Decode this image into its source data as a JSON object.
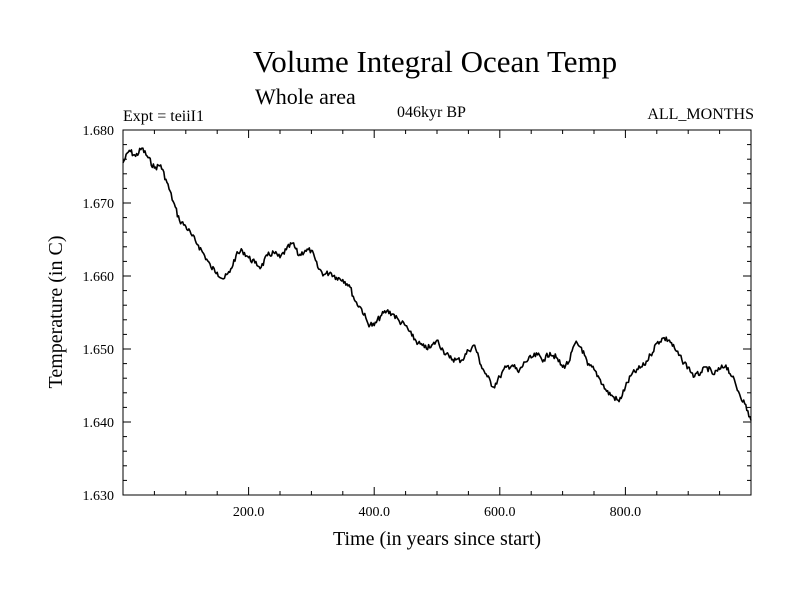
{
  "chart_data": {
    "type": "line",
    "title": "Volume Integral Ocean Temp",
    "subtitle": "Whole area",
    "annotations": {
      "experiment": "Expt = teiiI1",
      "period": "046kyr BP",
      "months": "ALL_MONTHS"
    },
    "xlabel": "Time (in years since start)",
    "ylabel": "Temperature (in C)",
    "xlim": [
      0,
      1000
    ],
    "ylim": [
      1.63,
      1.68
    ],
    "x_ticks": [
      200,
      400,
      600,
      800
    ],
    "x_tick_labels": [
      "200.0",
      "400.0",
      "600.0",
      "800.0"
    ],
    "y_ticks": [
      1.63,
      1.64,
      1.65,
      1.66,
      1.67,
      1.68
    ],
    "y_tick_labels": [
      "1.630",
      "1.640",
      "1.650",
      "1.660",
      "1.670",
      "1.680"
    ],
    "grid": false,
    "line_color": "#000000",
    "series": [
      {
        "x": [
          0,
          10,
          20,
          30,
          40,
          50,
          60,
          70,
          80,
          90,
          100,
          110,
          120,
          130,
          140,
          150,
          160,
          170,
          180,
          190,
          200,
          210,
          220,
          230,
          240,
          250,
          260,
          270,
          280,
          290,
          300,
          310,
          320,
          330,
          340,
          350,
          360,
          370,
          380,
          390,
          400,
          410,
          420,
          430,
          440,
          450,
          460,
          470,
          480,
          490,
          500,
          510,
          520,
          530,
          540,
          550,
          560,
          570,
          580,
          590,
          600,
          610,
          620,
          630,
          640,
          650,
          660,
          670,
          680,
          690,
          700,
          710,
          720,
          730,
          740,
          750,
          760,
          770,
          780,
          790,
          800,
          810,
          820,
          830,
          840,
          850,
          860,
          870,
          880,
          890,
          900,
          910,
          920,
          930,
          940,
          950,
          960,
          970,
          980,
          990,
          1000
        ],
        "values": [
          1.6755,
          1.6772,
          1.6764,
          1.6775,
          1.6762,
          1.6748,
          1.6752,
          1.6728,
          1.6702,
          1.6676,
          1.6668,
          1.6655,
          1.6642,
          1.6628,
          1.6612,
          1.6605,
          1.6596,
          1.6605,
          1.6628,
          1.6635,
          1.6625,
          1.6618,
          1.6612,
          1.6628,
          1.6632,
          1.6625,
          1.6636,
          1.6645,
          1.6628,
          1.6635,
          1.6635,
          1.6612,
          1.6602,
          1.6605,
          1.6598,
          1.6595,
          1.6588,
          1.6565,
          1.6555,
          1.6535,
          1.6532,
          1.6545,
          1.6552,
          1.6548,
          1.6538,
          1.6532,
          1.6518,
          1.6508,
          1.6502,
          1.6502,
          1.6512,
          1.6498,
          1.6488,
          1.6485,
          1.6485,
          1.6498,
          1.6505,
          1.6478,
          1.6462,
          1.6448,
          1.6462,
          1.6475,
          1.6478,
          1.6468,
          1.6482,
          1.6488,
          1.6492,
          1.6485,
          1.6495,
          1.6488,
          1.6475,
          1.6482,
          1.6508,
          1.6502,
          1.6478,
          1.6472,
          1.6458,
          1.6442,
          1.6435,
          1.6428,
          1.6448,
          1.6465,
          1.6472,
          1.6478,
          1.6492,
          1.6508,
          1.6515,
          1.6512,
          1.6498,
          1.6485,
          1.6475,
          1.6462,
          1.6468,
          1.6475,
          1.6465,
          1.6472,
          1.6478,
          1.6462,
          1.6442,
          1.6425,
          1.6402
        ]
      }
    ]
  }
}
